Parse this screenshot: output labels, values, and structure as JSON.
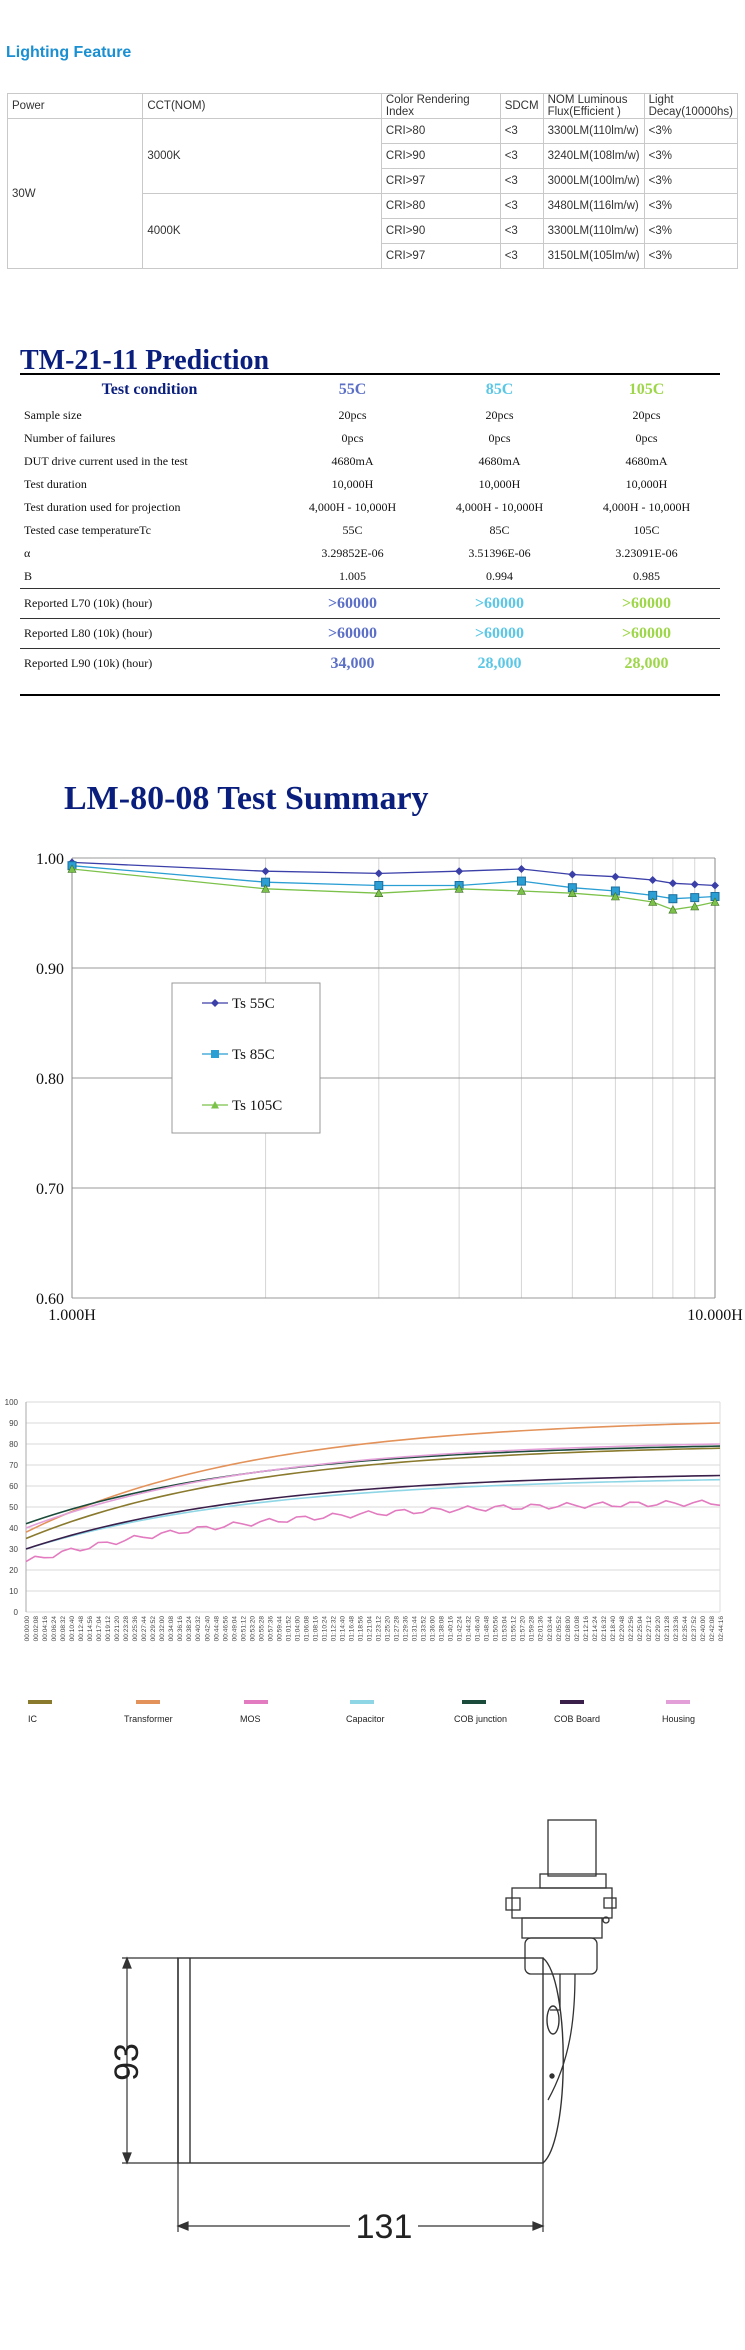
{
  "lighting": {
    "title": "Lighting Feature",
    "headers": [
      "Power",
      "CCT(NOM)",
      "Color Rendering Index",
      "SDCM",
      "NOM Luminous Flux(Efficient )",
      "Light Decay(10000hs)"
    ],
    "power": "30W",
    "groups": [
      {
        "cct": "3000K",
        "rows": [
          {
            "cri": "CRI>80",
            "sdcm": "<3",
            "flux": "3300LM(110lm/w)",
            "decay": "<3%"
          },
          {
            "cri": "CRI>90",
            "sdcm": "<3",
            "flux": "3240LM(108lm/w)",
            "decay": "<3%"
          },
          {
            "cri": "CRI>97",
            "sdcm": "<3",
            "flux": "3000LM(100lm/w)",
            "decay": "<3%"
          }
        ]
      },
      {
        "cct": "4000K",
        "rows": [
          {
            "cri": "CRI>80",
            "sdcm": "<3",
            "flux": "3480LM(116lm/w)",
            "decay": "<3%"
          },
          {
            "cri": "CRI>90",
            "sdcm": "<3",
            "flux": "3300LM(110lm/w)",
            "decay": "<3%"
          },
          {
            "cri": "CRI>97",
            "sdcm": "<3",
            "flux": "3150LM(105lm/w)",
            "decay": "<3%"
          }
        ]
      }
    ]
  },
  "tm21": {
    "title": "TM-21-11 Prediction",
    "head": [
      "Test condition",
      "55C",
      "85C",
      "105C"
    ],
    "head_colors": [
      "#0a1e7d",
      "#5b6fc7",
      "#5bc7e6",
      "#9ed649"
    ],
    "rows": [
      [
        "Sample size",
        "20pcs",
        "20pcs",
        "20pcs"
      ],
      [
        "Number of failures",
        "0pcs",
        "0pcs",
        "0pcs"
      ],
      [
        "DUT drive current used in the test",
        "4680mA",
        "4680mA",
        "4680mA"
      ],
      [
        "Test duration",
        "10,000H",
        "10,000H",
        "10,000H"
      ],
      [
        "Test duration used for projection",
        "4,000H - 10,000H",
        "4,000H - 10,000H",
        "4,000H - 10,000H"
      ],
      [
        "Tested case temperatureTc",
        "55C",
        "85C",
        "105C"
      ],
      [
        "α",
        "3.29852E-06",
        "3.51396E-06",
        "3.23091E-06"
      ],
      [
        "B",
        "1.005",
        "0.994",
        "0.985"
      ]
    ],
    "reported": [
      [
        "Reported L70 (10k) (hour)",
        ">60000",
        ">60000",
        ">60000"
      ],
      [
        "Reported L80 (10k) (hour)",
        ">60000",
        ">60000",
        ">60000"
      ],
      [
        "Reported L90 (10k) (hour)",
        "34,000",
        "28,000",
        "28,000"
      ]
    ]
  },
  "chart_data": [
    {
      "type": "line",
      "title": "LM-80-08 Test Summary",
      "x_scale": "log",
      "x": [
        1000,
        2000,
        3000,
        4000,
        5000,
        6000,
        7000,
        8000,
        8600,
        9300,
        10000
      ],
      "x_tick_labels": [
        "1,000H",
        "10,000H"
      ],
      "ylim": [
        0.6,
        1.0
      ],
      "y_ticks": [
        "1.00",
        "0.90",
        "0.80",
        "0.70",
        "0.60"
      ],
      "legend_position": "left-middle",
      "series": [
        {
          "name": "Ts 55C",
          "color": "#3b3fa8",
          "marker": "diamond",
          "values": [
            0.996,
            0.988,
            0.986,
            0.988,
            0.99,
            0.985,
            0.983,
            0.98,
            0.977,
            0.976,
            0.975
          ]
        },
        {
          "name": "Ts 85C",
          "color": "#2b9ed4",
          "marker": "square",
          "values": [
            0.993,
            0.978,
            0.975,
            0.975,
            0.979,
            0.973,
            0.97,
            0.966,
            0.963,
            0.964,
            0.965
          ]
        },
        {
          "name": "Ts 105C",
          "color": "#7cc24a",
          "marker": "triangle",
          "values": [
            0.99,
            0.972,
            0.968,
            0.972,
            0.97,
            0.968,
            0.965,
            0.96,
            0.953,
            0.956,
            0.96
          ]
        }
      ]
    },
    {
      "type": "line",
      "ylim": [
        0,
        100
      ],
      "y_ticks": [
        "100",
        "90",
        "80",
        "70",
        "60",
        "50",
        "40",
        "30",
        "20",
        "10",
        "0"
      ],
      "x_labels": [
        "00:00:00",
        "00:02:08",
        "00:04:16",
        "00:06:24",
        "00:08:32",
        "00:10:40",
        "00:12:48",
        "00:14:56",
        "00:17:04",
        "00:19:12",
        "00:21:20",
        "00:23:28",
        "00:25:36",
        "00:27:44",
        "00:29:52",
        "00:32:00",
        "00:34:08",
        "00:36:16",
        "00:38:24",
        "00:40:32",
        "00:42:40",
        "00:44:48",
        "00:46:56",
        "00:49:04",
        "00:51:12",
        "00:53:20",
        "00:55:28",
        "00:57:36",
        "00:59:44",
        "01:01:52",
        "01:04:00",
        "01:06:08",
        "01:08:16",
        "01:10:24",
        "01:12:32",
        "01:14:40",
        "01:16:48",
        "01:18:56",
        "01:21:04",
        "01:23:12",
        "01:25:20",
        "01:27:28",
        "01:29:36",
        "01:31:44",
        "01:33:52",
        "01:36:00",
        "01:38:08",
        "01:40:16",
        "01:42:24",
        "01:44:32",
        "01:46:40",
        "01:48:48",
        "01:50:56",
        "01:53:04",
        "01:55:12",
        "01:57:20",
        "01:59:28",
        "02:01:36",
        "02:03:44",
        "02:05:52",
        "02:08:00",
        "02:10:08",
        "02:12:16",
        "02:14:24",
        "02:16:32",
        "02:18:40",
        "02:20:48",
        "02:22:56",
        "02:25:04",
        "02:27:12",
        "02:29:20",
        "02:31:28",
        "02:33:36",
        "02:35:44",
        "02:37:52",
        "02:40:00",
        "02:42:08",
        "02:44:16"
      ],
      "legend_position": "bottom",
      "series": [
        {
          "name": "IC",
          "color": "#8a7a2e",
          "start": 35,
          "end": 78
        },
        {
          "name": "Transformer",
          "color": "#e3925a",
          "start": 38,
          "end": 90
        },
        {
          "name": "MOS",
          "color": "#e27bbf",
          "start": 24,
          "end": 52
        },
        {
          "name": "Capacitor",
          "color": "#8ed6e6",
          "start": 30,
          "end": 63
        },
        {
          "name": "COB junction",
          "color": "#1b4b3b",
          "start": 42,
          "end": 79
        },
        {
          "name": "COB Board",
          "color": "#3b1f4b",
          "start": 30,
          "end": 65
        },
        {
          "name": "Housing",
          "color": "#e3a0d8",
          "start": 40,
          "end": 80
        }
      ]
    }
  ],
  "drawing": {
    "dim_height": "93",
    "dim_length": "131"
  }
}
